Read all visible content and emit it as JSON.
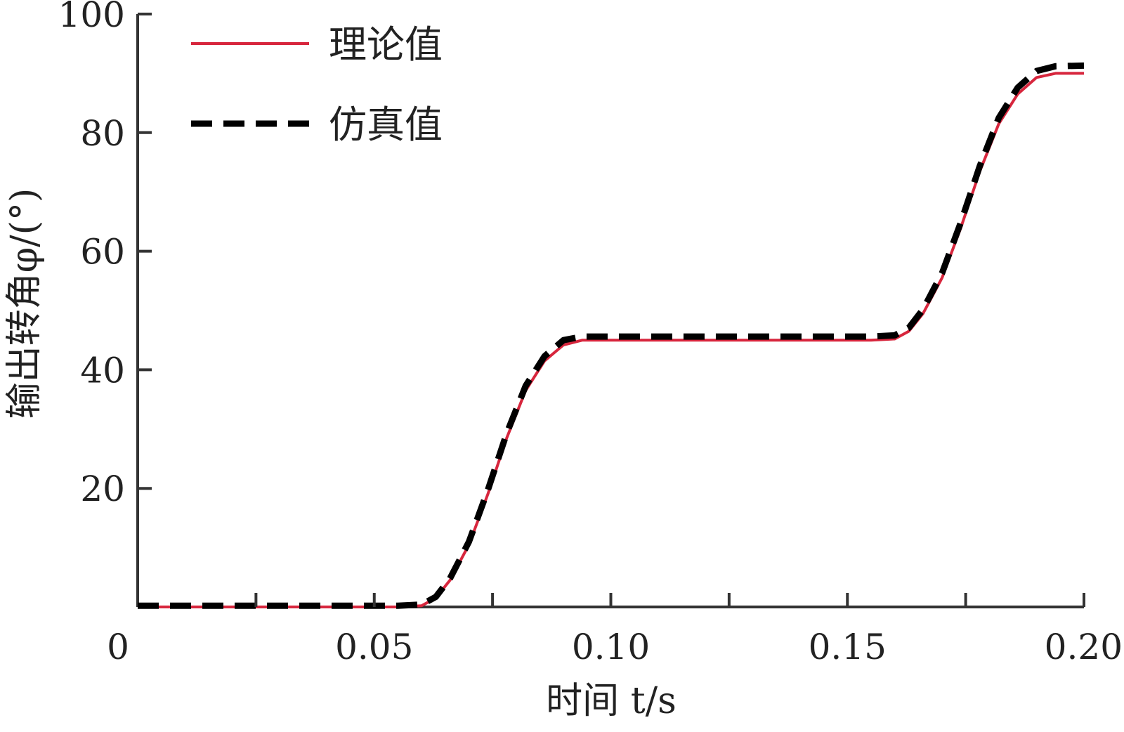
{
  "chart_data": {
    "type": "line",
    "title": "",
    "xlabel": "时间 t/s",
    "ylabel": "输出转角φ/(°)",
    "xlim": [
      0,
      0.2
    ],
    "ylim": [
      0,
      100
    ],
    "x_ticks": [
      0,
      0.05,
      0.1,
      0.15,
      0.2
    ],
    "x_tick_labels": [
      "0",
      "0.05",
      "0.10",
      "0.15",
      "0.20"
    ],
    "y_ticks": [
      20,
      40,
      60,
      80,
      100
    ],
    "y_tick_labels": [
      "20",
      "40",
      "60",
      "80",
      "100"
    ],
    "grid": false,
    "legend_position": "top-left",
    "series": [
      {
        "name": "理论值",
        "color": "#d7263d",
        "style": "solid",
        "x": [
          0,
          0.01,
          0.02,
          0.03,
          0.04,
          0.05,
          0.055,
          0.06,
          0.063,
          0.066,
          0.07,
          0.074,
          0.078,
          0.082,
          0.086,
          0.09,
          0.094,
          0.1,
          0.11,
          0.12,
          0.13,
          0.14,
          0.15,
          0.155,
          0.16,
          0.163,
          0.166,
          0.17,
          0.174,
          0.178,
          0.182,
          0.186,
          0.19,
          0.194,
          0.2
        ],
        "y": [
          0,
          0,
          0,
          0,
          0,
          0,
          0,
          0.2,
          1.5,
          4.5,
          10.5,
          19,
          28.5,
          36.5,
          41.5,
          44.2,
          45,
          45,
          45,
          45,
          45,
          45,
          45,
          45,
          45.2,
          46.5,
          49.5,
          55.5,
          64,
          73.5,
          81.5,
          86.5,
          89.3,
          90,
          90
        ]
      },
      {
        "name": "仿真值",
        "color": "#000000",
        "style": "dashed",
        "x": [
          0,
          0.01,
          0.02,
          0.03,
          0.04,
          0.05,
          0.055,
          0.06,
          0.063,
          0.066,
          0.07,
          0.074,
          0.078,
          0.082,
          0.086,
          0.09,
          0.094,
          0.1,
          0.11,
          0.12,
          0.13,
          0.14,
          0.15,
          0.155,
          0.16,
          0.163,
          0.166,
          0.17,
          0.174,
          0.178,
          0.182,
          0.186,
          0.19,
          0.194,
          0.2
        ],
        "y": [
          0.2,
          0.2,
          0.2,
          0.2,
          0.2,
          0.2,
          0.2,
          0.4,
          1.7,
          4.8,
          11,
          19.7,
          29.3,
          37.3,
          42.3,
          45,
          45.6,
          45.6,
          45.6,
          45.6,
          45.6,
          45.6,
          45.6,
          45.6,
          45.8,
          47.1,
          50.2,
          56.3,
          64.9,
          74.4,
          82.5,
          87.6,
          90.4,
          91.2,
          91.3
        ]
      }
    ]
  }
}
